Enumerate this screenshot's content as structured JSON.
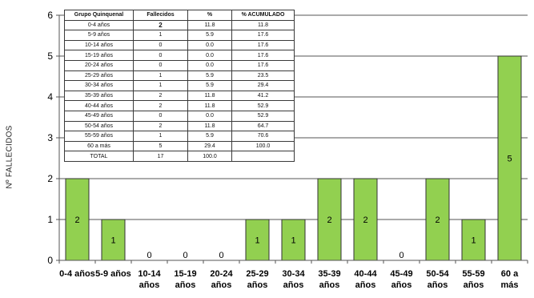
{
  "chart_data": {
    "type": "bar",
    "ylabel": "Nº FALLECIDOS",
    "xlabel": "",
    "ylim": [
      0,
      6
    ],
    "yticks": [
      0,
      1,
      2,
      3,
      4,
      5,
      6
    ],
    "grid": true,
    "bar_color": "#92d050",
    "categories": [
      "0-4 años",
      "5-9 años",
      "10-14 años",
      "15-19 años",
      "20-24 años",
      "25-29 años",
      "30-34 años",
      "35-39 años",
      "40-44 años",
      "45-49 años",
      "50-54 años",
      "55-59 años",
      "60 a más"
    ],
    "tick_labels": [
      [
        "0-4 años"
      ],
      [
        "5-9 años"
      ],
      [
        "10-14",
        "años"
      ],
      [
        "15-19",
        "años"
      ],
      [
        "20-24",
        "años"
      ],
      [
        "25-29",
        "años"
      ],
      [
        "30-34",
        "años"
      ],
      [
        "35-39",
        "años"
      ],
      [
        "40-44",
        "años"
      ],
      [
        "45-49",
        "años"
      ],
      [
        "50-54",
        "años"
      ],
      [
        "55-59",
        "años"
      ],
      [
        "60 a",
        "más"
      ]
    ],
    "values": [
      2,
      1,
      0,
      0,
      0,
      1,
      1,
      2,
      2,
      0,
      2,
      1,
      5
    ]
  },
  "table": {
    "headers": [
      "Grupo Quinquenal",
      "Fallecidos",
      "%",
      "% ACUMULADO"
    ],
    "rows": [
      [
        "0-4 años",
        "2",
        "11.8",
        "11.8"
      ],
      [
        "5-9 años",
        "1",
        "5.9",
        "17.6"
      ],
      [
        "10-14 años",
        "0",
        "0.0",
        "17.6"
      ],
      [
        "15-19 años",
        "0",
        "0.0",
        "17.6"
      ],
      [
        "20-24 años",
        "0",
        "0.0",
        "17.6"
      ],
      [
        "25-29 años",
        "1",
        "5.9",
        "23.5"
      ],
      [
        "30-34 años",
        "1",
        "5.9",
        "29.4"
      ],
      [
        "35-39 años",
        "2",
        "11.8",
        "41.2"
      ],
      [
        "40-44 años",
        "2",
        "11.8",
        "52.9"
      ],
      [
        "45-49 años",
        "0",
        "0.0",
        "52.9"
      ],
      [
        "50-54 años",
        "2",
        "11.8",
        "64.7"
      ],
      [
        "55-59 años",
        "1",
        "5.9",
        "70.6"
      ],
      [
        "60 a más",
        "5",
        "29.4",
        "100.0"
      ],
      [
        "TOTAL",
        "17",
        "100.0",
        ""
      ]
    ]
  }
}
